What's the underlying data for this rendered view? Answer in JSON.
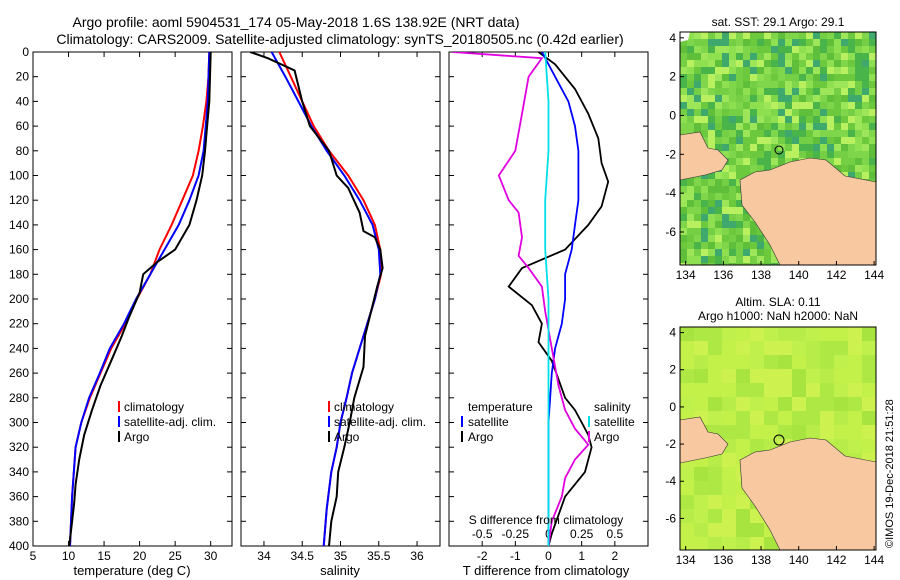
{
  "header": {
    "title_line1": "Argo profile: aoml 5904531_174 05-May-2018 1.6S 138.92E (NRT data)",
    "title_line2": "Climatology: CARS2009. Satellite-adjusted climatology: synTS_20180505.nc (0.42d earlier)"
  },
  "colors": {
    "climatology": "#ff0000",
    "satellite": "#0000ff",
    "argo": "#000000",
    "t_diff": "#00e0e8",
    "s_diff": "#e000e0",
    "land": "#f8c8a0",
    "nodata": "#ffffff"
  },
  "chart_data": [
    {
      "id": "temperature",
      "type": "line",
      "xlabel": "temperature (deg C)",
      "ylabel": "",
      "xlim": [
        5,
        33
      ],
      "ylim": [
        400,
        0
      ],
      "xticks": [
        5,
        10,
        15,
        20,
        25,
        30
      ],
      "yticks": [
        0,
        20,
        40,
        60,
        80,
        100,
        120,
        140,
        160,
        180,
        200,
        220,
        240,
        260,
        280,
        300,
        320,
        340,
        360,
        380,
        400
      ],
      "legend": [
        "climatology",
        "satellite-adj. clim.",
        "Argo"
      ],
      "series": [
        {
          "name": "climatology",
          "color": "#ff0000",
          "x": [
            29.8,
            29.7,
            29.4,
            28.9,
            28.3,
            27.5,
            26.0,
            24.5,
            22.8,
            21.5,
            19.6,
            18.0,
            16.0,
            14.5,
            13.0,
            11.8,
            11.0,
            10.5,
            10.2
          ],
          "y": [
            0,
            20,
            40,
            60,
            80,
            100,
            120,
            140,
            160,
            180,
            200,
            220,
            240,
            260,
            280,
            300,
            320,
            360,
            400
          ]
        },
        {
          "name": "satellite-adj. clim.",
          "color": "#0000ff",
          "x": [
            29.8,
            29.7,
            29.6,
            29.3,
            29.0,
            28.3,
            27.0,
            25.5,
            23.5,
            21.5,
            19.5,
            17.8,
            15.8,
            14.4,
            12.9,
            11.8,
            11.0,
            10.5,
            10.2
          ],
          "y": [
            0,
            20,
            40,
            60,
            80,
            100,
            120,
            140,
            160,
            180,
            200,
            220,
            240,
            260,
            280,
            300,
            320,
            360,
            400
          ]
        },
        {
          "name": "Argo",
          "color": "#000000",
          "x": [
            30.0,
            29.9,
            29.8,
            29.5,
            29.2,
            28.8,
            28.0,
            27.0,
            25.0,
            22.5,
            20.5,
            20.0,
            18.5,
            17.5,
            16.0,
            14.5,
            13.3,
            12.2,
            11.5,
            11.0,
            10.8,
            10.4,
            10.1
          ],
          "y": [
            0,
            20,
            40,
            60,
            80,
            100,
            120,
            140,
            160,
            170,
            180,
            195,
            215,
            230,
            250,
            270,
            290,
            310,
            330,
            350,
            365,
            385,
            400
          ]
        }
      ]
    },
    {
      "id": "salinity",
      "type": "line",
      "xlabel": "salinity",
      "ylabel": "",
      "xlim": [
        33.7,
        36.3
      ],
      "ylim": [
        400,
        0
      ],
      "xticks": [
        34,
        34.5,
        35,
        35.5,
        36
      ],
      "legend": [
        "climatology",
        "satellite-adj. clim.",
        "Argo"
      ],
      "series": [
        {
          "name": "climatology",
          "color": "#ff0000",
          "x": [
            34.2,
            34.35,
            34.5,
            34.65,
            34.85,
            35.1,
            35.3,
            35.45,
            35.52,
            35.53,
            35.45,
            35.35,
            35.25,
            35.15,
            35.08,
            35.0,
            34.95,
            34.88,
            34.82,
            34.78
          ],
          "y": [
            0,
            20,
            40,
            60,
            80,
            100,
            120,
            140,
            160,
            180,
            200,
            220,
            240,
            260,
            280,
            300,
            320,
            340,
            370,
            400
          ]
        },
        {
          "name": "satellite-adj. clim.",
          "color": "#0000ff",
          "x": [
            34.1,
            34.28,
            34.45,
            34.62,
            34.82,
            35.05,
            35.25,
            35.42,
            35.5,
            35.52,
            35.45,
            35.35,
            35.25,
            35.15,
            35.08,
            35.0,
            34.95,
            34.88,
            34.82,
            34.78
          ],
          "y": [
            0,
            20,
            40,
            60,
            80,
            100,
            120,
            140,
            160,
            180,
            200,
            220,
            240,
            260,
            280,
            300,
            320,
            340,
            370,
            400
          ]
        },
        {
          "name": "Argo",
          "color": "#000000",
          "x": [
            33.82,
            34.05,
            34.4,
            34.5,
            34.6,
            34.85,
            34.95,
            35.1,
            35.25,
            35.3,
            35.45,
            35.52,
            35.55,
            35.48,
            35.4,
            35.32,
            35.3,
            35.18,
            35.12,
            35.05,
            34.97,
            34.95,
            34.88,
            34.85
          ],
          "y": [
            0,
            5,
            15,
            40,
            60,
            80,
            100,
            110,
            130,
            145,
            150,
            160,
            175,
            190,
            210,
            230,
            255,
            280,
            300,
            320,
            340,
            360,
            380,
            400
          ]
        }
      ]
    },
    {
      "id": "difference",
      "type": "line",
      "xlabel": "T difference from climatology",
      "x2label": "S difference from climatology",
      "xlim": [
        -3,
        3
      ],
      "ylim": [
        400,
        0
      ],
      "xticks": [
        -2,
        -1,
        0,
        1,
        2
      ],
      "x2ticks": [
        "-0.5",
        "-0.25",
        "0",
        "0.25",
        "0.5"
      ],
      "legend_left_title": "temperature",
      "legend_right_title": "salinity",
      "legend_left": [
        "satellite",
        "Argo"
      ],
      "legend_right": [
        "satellite",
        "Argo"
      ],
      "series": [
        {
          "name": "T Argo - clim",
          "color": "#000000",
          "x": [
            -0.3,
            0.2,
            0.8,
            1.2,
            1.5,
            1.6,
            1.8,
            1.7,
            1.6,
            1.2,
            0.5,
            -0.8,
            -1.2,
            -0.5,
            -0.2,
            -0.3,
            0.1,
            0.3,
            0.5,
            0.8,
            1.0,
            1.2,
            1.3,
            1.2,
            1.1,
            0.5,
            0.3,
            0.1,
            0.0
          ],
          "y": [
            0,
            10,
            30,
            50,
            70,
            90,
            105,
            115,
            125,
            140,
            160,
            175,
            190,
            205,
            220,
            235,
            250,
            265,
            280,
            290,
            300,
            310,
            320,
            330,
            340,
            360,
            375,
            390,
            400
          ]
        },
        {
          "name": "T satellite - clim",
          "color": "#0000ff",
          "x": [
            -0.2,
            0.2,
            0.6,
            0.8,
            0.9,
            0.9,
            0.9,
            0.8,
            0.7,
            0.5,
            0.5,
            0.4,
            0.2,
            0.1,
            0.0,
            0.0,
            0.0
          ],
          "y": [
            0,
            20,
            40,
            60,
            80,
            100,
            120,
            140,
            160,
            180,
            200,
            220,
            240,
            260,
            300,
            350,
            400
          ]
        },
        {
          "name": "S Argo - clim",
          "color": "#e000e0",
          "x": [
            -2.9,
            -0.2,
            -0.6,
            -0.8,
            -1.0,
            -1.5,
            -1.2,
            -0.9,
            -0.8,
            -0.9,
            -0.6,
            -0.2,
            -0.1,
            0.1,
            0.3,
            0.5,
            0.8,
            1.2,
            0.8,
            0.5,
            0.4,
            0.1,
            0.0
          ],
          "y": [
            0,
            5,
            20,
            50,
            80,
            100,
            120,
            130,
            150,
            165,
            175,
            190,
            210,
            240,
            270,
            290,
            305,
            318,
            330,
            345,
            360,
            380,
            400
          ]
        },
        {
          "name": "S satellite - clim",
          "color": "#00e0e8",
          "x": [
            -0.1,
            0.0,
            0.0,
            -0.1,
            -0.1,
            0.0,
            0.0,
            0.0,
            0.0,
            0.0
          ],
          "y": [
            0,
            40,
            80,
            120,
            160,
            200,
            250,
            300,
            350,
            400
          ]
        }
      ]
    },
    {
      "id": "sst_map",
      "type": "heatmap",
      "title": "sat. SST: 29.1 Argo: 29.1",
      "xlim": [
        133.7,
        144.1
      ],
      "ylim": [
        -7.7,
        4.3
      ],
      "xticks": [
        134,
        136,
        138,
        140,
        142,
        144
      ],
      "yticks": [
        4,
        2,
        0,
        -2,
        -4,
        -6
      ],
      "argo_position": [
        138.92,
        -1.6
      ]
    },
    {
      "id": "sla_map",
      "type": "heatmap",
      "title_line1": "Altim. SLA: 0.11",
      "title_line2": "Argo h1000: NaN h2000: NaN",
      "xlim": [
        133.7,
        144.1
      ],
      "ylim": [
        -7.7,
        4.3
      ],
      "xticks": [
        134,
        136,
        138,
        140,
        142,
        144
      ],
      "yticks": [
        4,
        2,
        0,
        -2,
        -4,
        -6
      ],
      "argo_position": [
        138.92,
        -1.6
      ]
    }
  ],
  "footer": {
    "credit": "©IMOS 19-Dec-2018 21:51:28"
  }
}
